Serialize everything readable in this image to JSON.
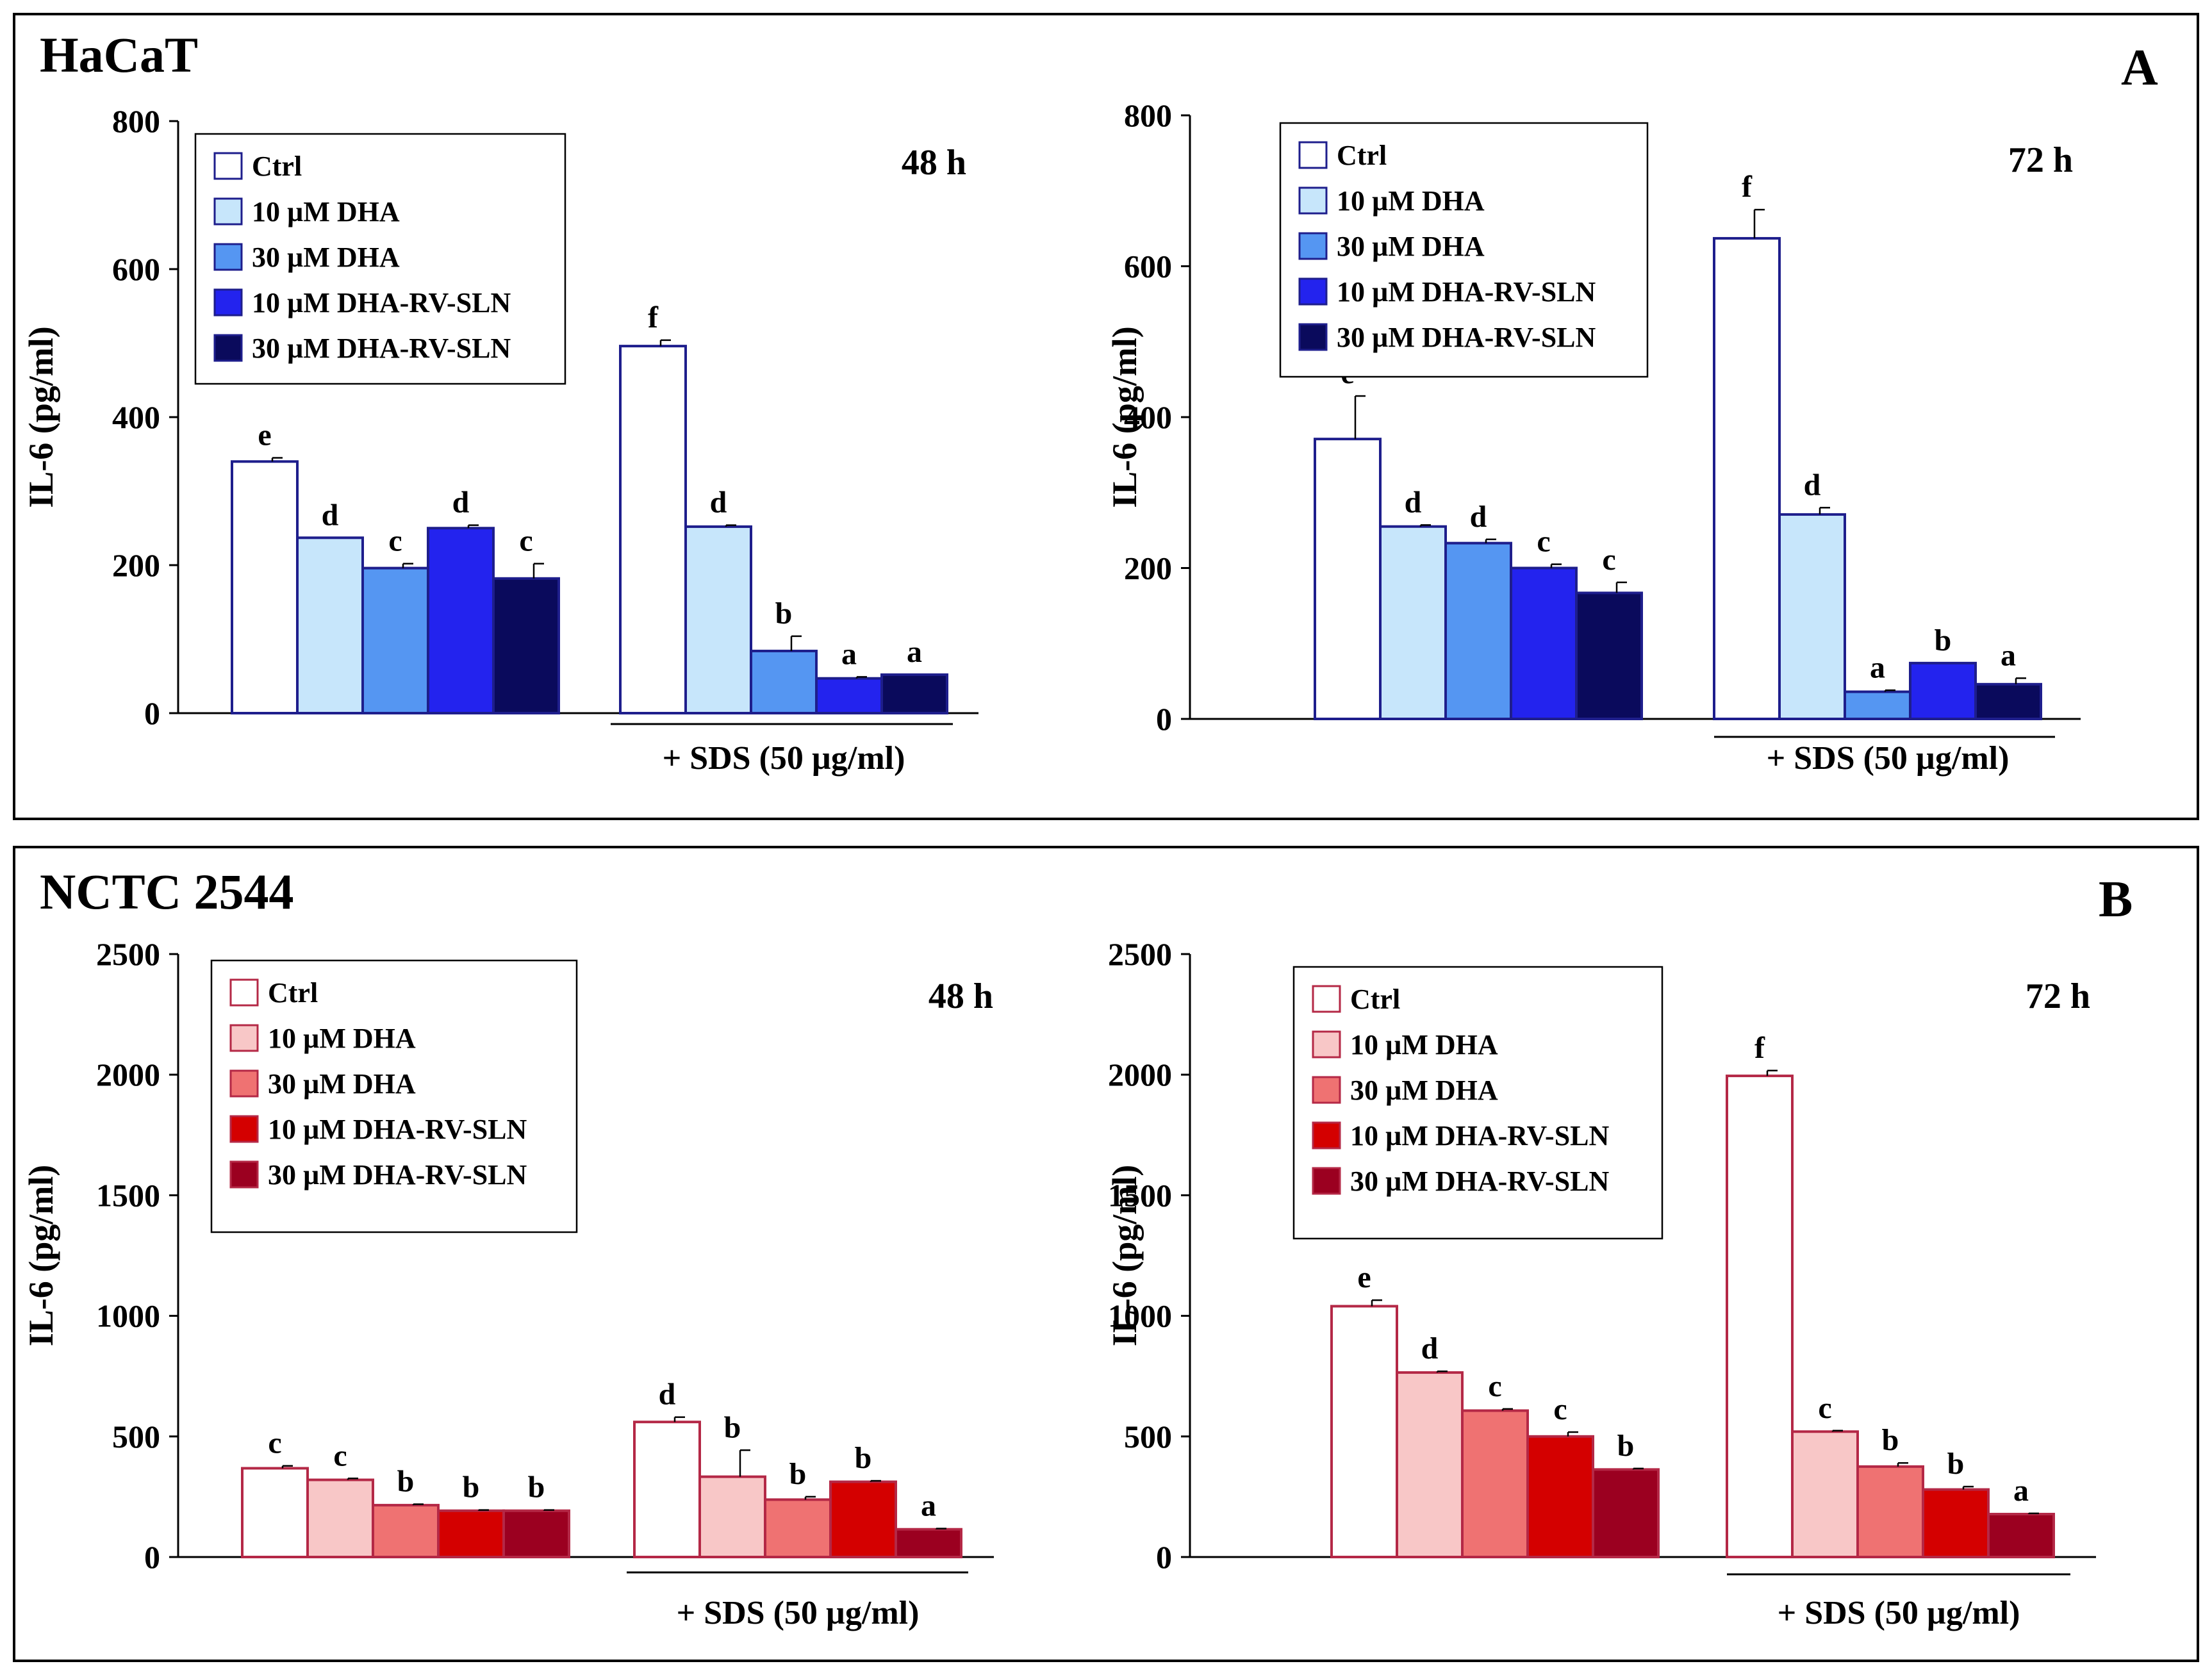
{
  "figure": {
    "panels": [
      {
        "id": "A",
        "title": "HaCaT",
        "letter": "A"
      },
      {
        "id": "B",
        "title": "NCTC 2544",
        "letter": "B"
      }
    ]
  },
  "chart_data": [
    {
      "type": "bar",
      "panel": "A",
      "time_label": "48 h",
      "ylabel": "IL-6 (pg/ml)",
      "ylim": [
        0,
        800
      ],
      "yticks": [
        0,
        200,
        400,
        600,
        800
      ],
      "groups": [
        "",
        "+ SDS (50 µg/ml)"
      ],
      "series": [
        {
          "name": "Ctrl",
          "color": "#ffffff",
          "values": [
            340,
            496
          ],
          "errors": [
            5,
            8
          ],
          "letters": [
            "e",
            "f"
          ]
        },
        {
          "name": "10 µM DHA",
          "color": "#c7e6fb",
          "values": [
            237,
            252
          ],
          "errors": [
            0,
            2
          ],
          "letters": [
            "d",
            "d"
          ]
        },
        {
          "name": "30 µM DHA",
          "color": "#5596f2",
          "values": [
            196,
            84
          ],
          "errors": [
            6,
            20
          ],
          "letters": [
            "c",
            "b"
          ]
        },
        {
          "name": "10 µM DHA-RV-SLN",
          "color": "#2323ee",
          "values": [
            250,
            47
          ],
          "errors": [
            4,
            2
          ],
          "letters": [
            "d",
            "a"
          ]
        },
        {
          "name": "30 µM DHA-RV-SLN",
          "color": "#0a0a5c",
          "values": [
            182,
            52
          ],
          "errors": [
            20,
            0
          ],
          "letters": [
            "c",
            "a"
          ]
        }
      ]
    },
    {
      "type": "bar",
      "panel": "A",
      "time_label": "72 h",
      "ylabel": "IL-6 (pg/ml)",
      "ylim": [
        0,
        800
      ],
      "yticks": [
        0,
        200,
        400,
        600,
        800
      ],
      "groups": [
        "",
        "+ SDS (50 µg/ml)"
      ],
      "series": [
        {
          "name": "Ctrl",
          "color": "#ffffff",
          "values": [
            371,
            637
          ],
          "errors": [
            57,
            38
          ],
          "letters": [
            "e",
            "f"
          ]
        },
        {
          "name": "10 µM DHA",
          "color": "#c7e6fb",
          "values": [
            255,
            271
          ],
          "errors": [
            2,
            9
          ],
          "letters": [
            "d",
            "d"
          ]
        },
        {
          "name": "30 µM DHA",
          "color": "#5596f2",
          "values": [
            233,
            36
          ],
          "errors": [
            5,
            2
          ],
          "letters": [
            "d",
            "a"
          ]
        },
        {
          "name": "10 µM DHA-RV-SLN",
          "color": "#2323ee",
          "values": [
            200,
            74
          ],
          "errors": [
            5,
            0
          ],
          "letters": [
            "c",
            "b"
          ]
        },
        {
          "name": "30 µM DHA-RV-SLN",
          "color": "#0a0a5c",
          "values": [
            167,
            46
          ],
          "errors": [
            14,
            8
          ],
          "letters": [
            "c",
            "a"
          ]
        }
      ]
    },
    {
      "type": "bar",
      "panel": "B",
      "time_label": "48 h",
      "ylabel": "IL-6 (pg/ml)",
      "ylim": [
        0,
        2500
      ],
      "yticks": [
        0,
        500,
        1000,
        1500,
        2000,
        2500
      ],
      "groups": [
        "",
        "+ SDS (50 µg/ml)"
      ],
      "series": [
        {
          "name": "Ctrl",
          "color": "#ffffff",
          "values": [
            368,
            560
          ],
          "errors": [
            10,
            20
          ],
          "letters": [
            "c",
            "d"
          ]
        },
        {
          "name": "10 µM DHA",
          "color": "#f8c7c7",
          "values": [
            320,
            333
          ],
          "errors": [
            6,
            110
          ],
          "letters": [
            "c",
            "b"
          ]
        },
        {
          "name": "30 µM DHA",
          "color": "#ef7272",
          "values": [
            215,
            238
          ],
          "errors": [
            4,
            12
          ],
          "letters": [
            "b",
            "b"
          ]
        },
        {
          "name": "10 µM DHA-RV-SLN",
          "color": "#d40000",
          "values": [
            192,
            312
          ],
          "errors": [
            3,
            4
          ],
          "letters": [
            "b",
            "b"
          ]
        },
        {
          "name": "30 µM DHA-RV-SLN",
          "color": "#9b0020",
          "values": [
            192,
            115
          ],
          "errors": [
            3,
            3
          ],
          "letters": [
            "b",
            "a"
          ]
        }
      ]
    },
    {
      "type": "bar",
      "panel": "B",
      "time_label": "72 h",
      "ylabel": "IL-6 (pg/ml)",
      "ylim": [
        0,
        2500
      ],
      "yticks": [
        0,
        500,
        1000,
        1500,
        2000,
        2500
      ],
      "groups": [
        "",
        "+ SDS (50 µg/ml)"
      ],
      "series": [
        {
          "name": "Ctrl",
          "color": "#ffffff",
          "values": [
            1040,
            1995
          ],
          "errors": [
            25,
            22
          ],
          "letters": [
            "e",
            "f"
          ]
        },
        {
          "name": "10 µM DHA",
          "color": "#f8c7c7",
          "values": [
            765,
            520
          ],
          "errors": [
            5,
            4
          ],
          "letters": [
            "d",
            "c"
          ]
        },
        {
          "name": "30 µM DHA",
          "color": "#ef7272",
          "values": [
            607,
            375
          ],
          "errors": [
            7,
            15
          ],
          "letters": [
            "c",
            "b"
          ]
        },
        {
          "name": "10 µM DHA-RV-SLN",
          "color": "#d40000",
          "values": [
            500,
            280
          ],
          "errors": [
            18,
            12
          ],
          "letters": [
            "c",
            "b"
          ]
        },
        {
          "name": "30 µM DHA-RV-SLN",
          "color": "#9b0020",
          "values": [
            363,
            178
          ],
          "errors": [
            4,
            3
          ],
          "letters": [
            "b",
            "a"
          ]
        }
      ]
    }
  ]
}
